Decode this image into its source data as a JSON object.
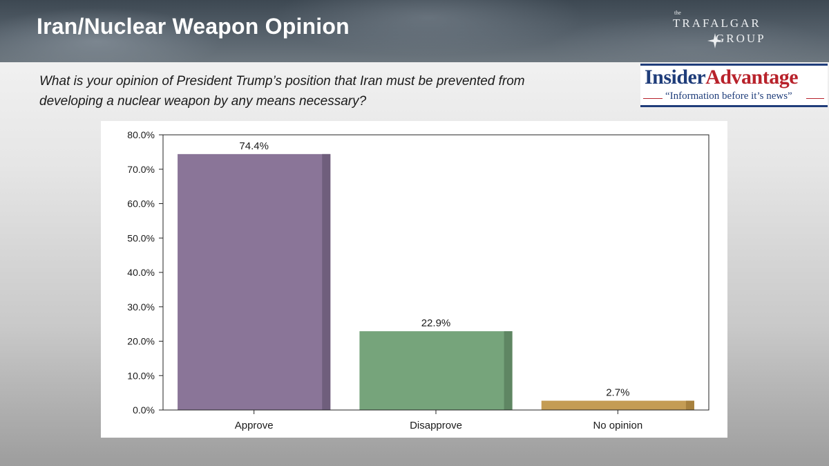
{
  "header": {
    "title": "Iran/Nuclear Weapon Opinion",
    "logo_the": "the",
    "logo_line1": "TRAFALGAR",
    "logo_line2": "GROUP"
  },
  "question": {
    "line1": "What is your opinion of President Trump’s position that Iran must be prevented from",
    "line2": "developing a nuclear weapon by any means necessary?"
  },
  "sponsor_logo": {
    "name_part1": "Insider",
    "name_part2": "Advantage",
    "tagline": "“Information before it’s news”"
  },
  "chart_data": {
    "type": "bar",
    "categories": [
      "Approve",
      "Disapprove",
      "No opinion"
    ],
    "values": [
      74.4,
      22.9,
      2.7
    ],
    "value_labels": [
      "74.4%",
      "22.9%",
      "2.7%"
    ],
    "colors": [
      "#8a7598",
      "#76a47b",
      "#c49c54"
    ],
    "shade_colors": [
      "#6f5e7c",
      "#5f8663",
      "#a7813e"
    ],
    "ylim": [
      0,
      80
    ],
    "yticks": [
      0,
      10,
      20,
      30,
      40,
      50,
      60,
      70,
      80
    ],
    "ytick_labels": [
      "0.0%",
      "10.0%",
      "20.0%",
      "30.0%",
      "40.0%",
      "50.0%",
      "60.0%",
      "70.0%",
      "80.0%"
    ],
    "title": "",
    "xlabel": "",
    "ylabel": "",
    "grid": false,
    "legend": "none"
  }
}
